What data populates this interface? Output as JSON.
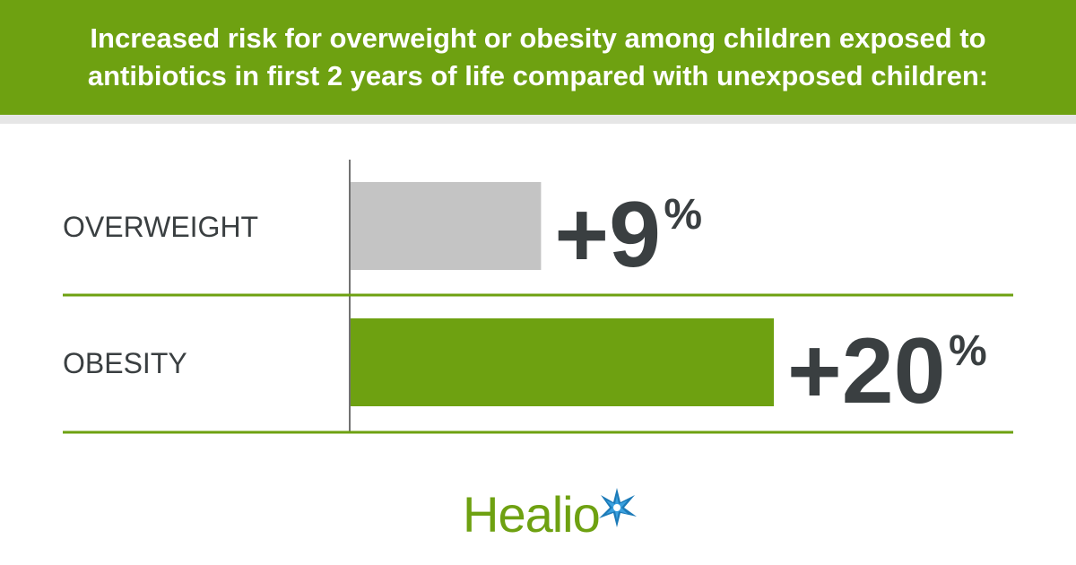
{
  "header": {
    "title": "Increased risk for overweight or obesity among children exposed to antibiotics in first 2 years of life compared with unexposed children:"
  },
  "chart_data": {
    "type": "bar",
    "orientation": "horizontal",
    "title": "Increased risk for overweight or obesity among children exposed to antibiotics in first 2 years of life compared with unexposed children:",
    "categories": [
      "OVERWEIGHT",
      "OBESITY"
    ],
    "values": [
      9,
      20
    ],
    "value_labels": [
      "+9",
      "+20"
    ],
    "value_suffix": "%",
    "bar_colors": [
      "#c4c4c4",
      "#6ea111"
    ],
    "xlim": [
      0,
      20
    ],
    "grid": false,
    "legend": "none"
  },
  "logo": {
    "text": "Healio",
    "icon": "star-icon"
  },
  "colors": {
    "accent": "#6ea111",
    "dark_text": "#3a3f41",
    "gray_bar": "#c4c4c4"
  }
}
